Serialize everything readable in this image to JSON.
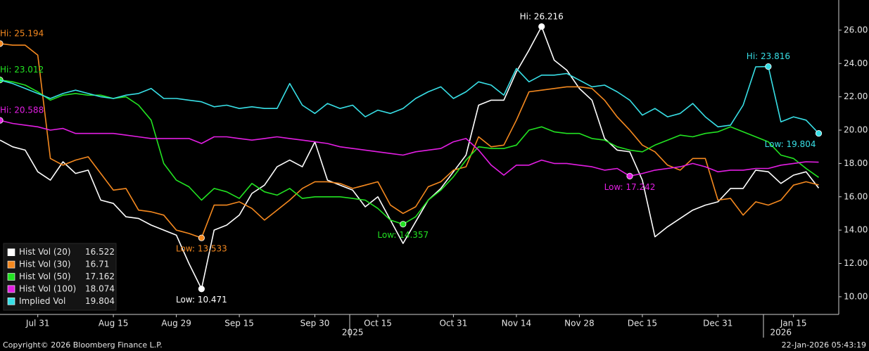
{
  "chart_data": {
    "type": "line",
    "categories": [
      null,
      null,
      null,
      "Jul 31",
      null,
      null,
      null,
      null,
      null,
      "Aug 15",
      null,
      null,
      null,
      null,
      "Aug 29",
      null,
      null,
      null,
      null,
      "Sep 15",
      null,
      null,
      null,
      null,
      null,
      "Sep 30",
      null,
      null,
      null,
      null,
      "Oct 15",
      null,
      null,
      null,
      null,
      null,
      "Oct 31",
      null,
      null,
      null,
      null,
      "Nov 14",
      null,
      null,
      null,
      null,
      "Nov 28",
      null,
      null,
      null,
      null,
      "Dec 15",
      null,
      null,
      null,
      null,
      null,
      "Dec 31",
      null,
      null,
      null,
      null,
      null,
      "Jan 15",
      null,
      null
    ],
    "years": [
      null,
      null,
      null,
      null,
      null,
      null,
      null,
      null,
      null,
      null,
      null,
      null,
      null,
      null,
      null,
      null,
      null,
      null,
      null,
      null,
      null,
      null,
      null,
      null,
      null,
      null,
      null,
      null,
      "2025",
      null,
      null,
      null,
      null,
      null,
      null,
      null,
      null,
      null,
      null,
      null,
      null,
      null,
      null,
      null,
      null,
      null,
      null,
      null,
      null,
      null,
      null,
      null,
      null,
      null,
      null,
      null,
      null,
      null,
      null,
      null,
      null,
      null,
      "2026",
      null,
      null,
      null
    ],
    "ylim": [
      8.94,
      27.81
    ],
    "yticks": [
      {
        "value": 10,
        "label": "10.00"
      },
      {
        "value": 12,
        "label": "12.00"
      },
      {
        "value": 14,
        "label": "14.00"
      },
      {
        "value": 16,
        "label": "16.00"
      },
      {
        "value": 18,
        "label": "18.00"
      },
      {
        "value": 20,
        "label": "20.00"
      },
      {
        "value": 22,
        "label": "22.00"
      },
      {
        "value": 24,
        "label": "24.00"
      },
      {
        "value": 26,
        "label": "26.00"
      }
    ],
    "grid": false,
    "legend": "bottom-left",
    "series": [
      {
        "name": "Hist Vol (20)",
        "color": "#ffffff",
        "hi_label": "Hi: 26.216",
        "low_label": "Low: 10.471",
        "values": [
          19.4,
          19.0,
          18.8,
          17.5,
          17.0,
          18.1,
          17.4,
          17.6,
          15.8,
          15.6,
          14.8,
          14.7,
          14.3,
          14.0,
          13.7,
          12.0,
          10.471,
          14.0,
          14.3,
          14.9,
          16.2,
          16.7,
          17.8,
          18.2,
          17.8,
          19.3,
          17.0,
          16.7,
          16.4,
          15.4,
          16.0,
          14.6,
          13.2,
          14.5,
          15.8,
          16.5,
          17.5,
          18.5,
          21.5,
          21.8,
          21.8,
          23.5,
          24.8,
          26.216,
          24.2,
          23.6,
          22.5,
          21.8,
          19.5,
          18.8,
          18.7,
          17.0,
          13.6,
          14.2,
          14.7,
          15.2,
          15.5,
          15.7,
          16.5,
          16.5,
          17.6,
          17.5,
          16.8,
          17.3,
          17.5,
          16.522
        ]
      },
      {
        "name": "Hist Vol (30)",
        "color": "#f5891f",
        "hi_label": "Hi: 25.194",
        "low_label": "Low: 13.533",
        "values": [
          25.194,
          25.1,
          25.1,
          24.5,
          18.3,
          17.9,
          18.2,
          18.4,
          17.4,
          16.4,
          16.5,
          15.2,
          15.1,
          14.9,
          14.0,
          13.8,
          13.533,
          15.5,
          15.5,
          15.7,
          15.3,
          14.6,
          15.2,
          15.8,
          16.5,
          16.9,
          16.9,
          16.8,
          16.5,
          16.7,
          16.9,
          15.5,
          15.0,
          15.4,
          16.6,
          16.9,
          17.6,
          17.8,
          19.6,
          19.0,
          19.1,
          20.6,
          22.3,
          22.4,
          22.5,
          22.6,
          22.6,
          22.5,
          21.8,
          20.8,
          20.0,
          19.1,
          18.7,
          17.9,
          17.6,
          18.3,
          18.3,
          15.8,
          15.9,
          14.9,
          15.7,
          15.5,
          15.8,
          16.7,
          16.9,
          16.71
        ]
      },
      {
        "name": "Hist Vol (50)",
        "color": "#22e322",
        "hi_label": "Hi: 23.012",
        "low_label": "Low: 14.357",
        "values": [
          23.012,
          22.9,
          22.7,
          22.3,
          21.8,
          22.1,
          22.2,
          22.1,
          22.1,
          21.9,
          22.0,
          21.5,
          20.6,
          18.0,
          17.0,
          16.6,
          15.8,
          16.5,
          16.3,
          15.9,
          16.8,
          16.3,
          16.1,
          16.5,
          15.9,
          16.0,
          16.0,
          16.0,
          15.9,
          15.8,
          15.3,
          14.6,
          14.357,
          14.8,
          15.8,
          16.4,
          17.2,
          18.2,
          19.0,
          18.9,
          18.9,
          19.1,
          20.0,
          20.2,
          19.9,
          19.8,
          19.8,
          19.5,
          19.4,
          19.0,
          18.8,
          18.7,
          19.1,
          19.4,
          19.7,
          19.6,
          19.8,
          19.9,
          20.2,
          19.9,
          19.6,
          19.3,
          18.5,
          18.3,
          17.7,
          17.162
        ]
      },
      {
        "name": "Hist Vol (100)",
        "color": "#e31ee3",
        "hi_label": "Hi: 20.588",
        "low_label": "Low: 17.242",
        "values": [
          20.588,
          20.4,
          20.3,
          20.2,
          20.0,
          20.1,
          19.8,
          19.8,
          19.8,
          19.8,
          19.7,
          19.6,
          19.5,
          19.5,
          19.5,
          19.5,
          19.2,
          19.6,
          19.6,
          19.5,
          19.4,
          19.5,
          19.6,
          19.5,
          19.4,
          19.3,
          19.2,
          19.0,
          18.9,
          18.8,
          18.7,
          18.6,
          18.5,
          18.7,
          18.8,
          18.9,
          19.3,
          19.5,
          18.8,
          17.9,
          17.3,
          17.9,
          17.9,
          18.2,
          18.0,
          18.0,
          17.9,
          17.8,
          17.6,
          17.7,
          17.242,
          17.4,
          17.6,
          17.7,
          17.8,
          18.0,
          17.8,
          17.5,
          17.6,
          17.6,
          17.7,
          17.7,
          17.9,
          18.0,
          18.1,
          18.074
        ]
      },
      {
        "name": "Implied Vol",
        "color": "#38dfe6",
        "hi_label": "Hi: 23.816",
        "low_label": "Low: 19.804",
        "values": [
          23.0,
          22.8,
          22.5,
          22.2,
          21.9,
          22.2,
          22.4,
          22.2,
          22.0,
          21.9,
          22.1,
          22.2,
          22.5,
          21.9,
          21.9,
          21.8,
          21.7,
          21.4,
          21.5,
          21.3,
          21.4,
          21.3,
          21.3,
          22.8,
          21.5,
          21.0,
          21.6,
          21.3,
          21.5,
          20.8,
          21.2,
          21.0,
          21.3,
          21.9,
          22.3,
          22.6,
          21.9,
          22.3,
          22.9,
          22.7,
          22.1,
          23.7,
          22.9,
          23.3,
          23.3,
          23.4,
          23.0,
          22.6,
          22.7,
          22.3,
          21.8,
          20.9,
          21.3,
          20.8,
          21.0,
          21.6,
          20.8,
          20.2,
          20.3,
          21.5,
          23.8,
          23.816,
          20.5,
          20.8,
          20.6,
          19.804
        ]
      }
    ]
  },
  "footer": {
    "copyright": "Copyright© 2026 Bloomberg Finance L.P.",
    "timestamp": "22-Jan-2026 05:43:19"
  }
}
